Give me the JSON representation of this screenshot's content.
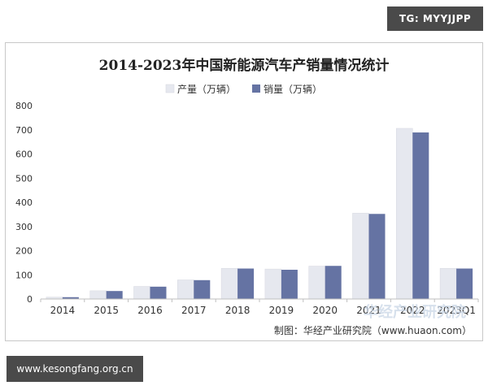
{
  "badges": {
    "telegram": "TG: MYYJJPP",
    "site": "www.kesongfang.org.cn"
  },
  "watermark": "华经产业研究院",
  "source": "制图：华经产业研究院（www.huaon.com）",
  "colors": {
    "production": "#e6e8ef",
    "sales": "#6573a3",
    "axis": "#bfbfbf",
    "text": "#333333"
  },
  "chart_data": {
    "type": "bar",
    "title": "2014-2023年中国新能源汽车产销量情况统计",
    "categories": [
      "2014",
      "2015",
      "2016",
      "2017",
      "2018",
      "2019",
      "2020",
      "2021",
      "2022",
      "2023Q1"
    ],
    "series": [
      {
        "name": "产量（万辆）",
        "values": [
          7.9,
          34,
          52,
          79,
          127,
          124,
          136,
          355,
          706,
          127
        ]
      },
      {
        "name": "销量（万辆）",
        "values": [
          7.5,
          33,
          51,
          78,
          126,
          121,
          137,
          352,
          689,
          126
        ]
      }
    ],
    "xlabel": "",
    "ylabel": "",
    "ylim": [
      0,
      800
    ],
    "yticks": [
      0,
      100,
      200,
      300,
      400,
      500,
      600,
      700,
      800
    ],
    "legend_position": "top-center",
    "grid": false
  }
}
